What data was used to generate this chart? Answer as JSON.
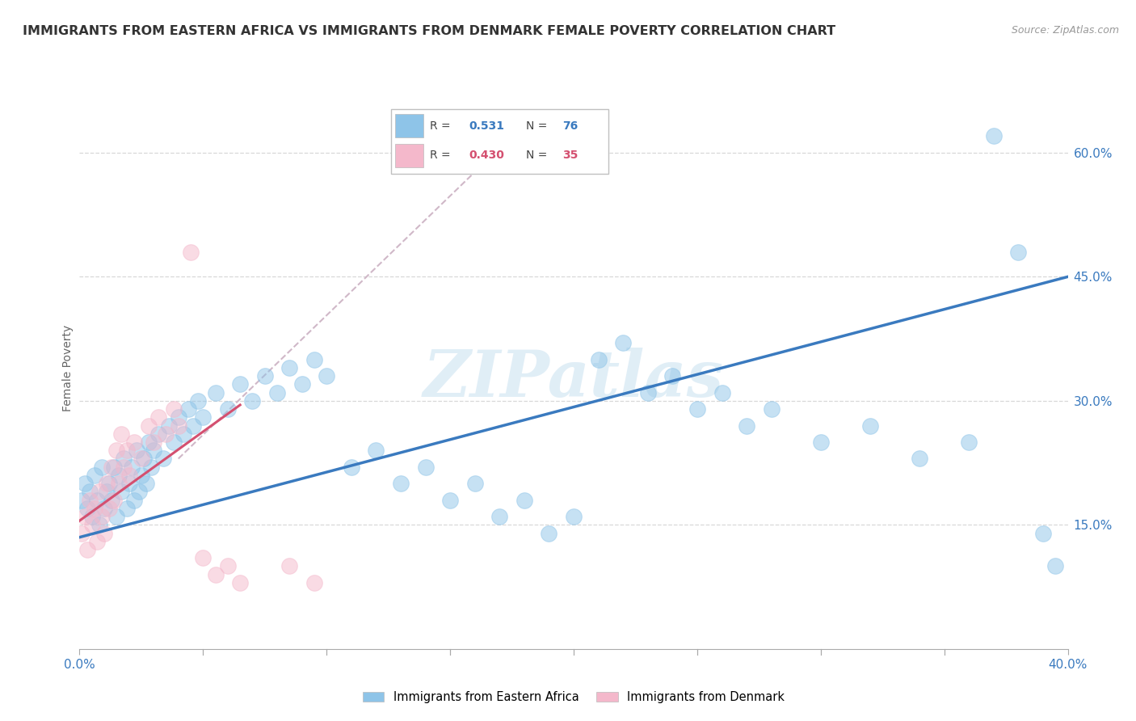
{
  "title": "IMMIGRANTS FROM EASTERN AFRICA VS IMMIGRANTS FROM DENMARK FEMALE POVERTY CORRELATION CHART",
  "source": "Source: ZipAtlas.com",
  "ylabel": "Female Poverty",
  "right_yticks": [
    "15.0%",
    "30.0%",
    "45.0%",
    "60.0%"
  ],
  "right_ytick_values": [
    0.15,
    0.3,
    0.45,
    0.6
  ],
  "xlim": [
    0.0,
    0.4
  ],
  "ylim": [
    0.0,
    0.68
  ],
  "bottom_legend1": "Immigrants from Eastern Africa",
  "bottom_legend2": "Immigrants from Denmark",
  "watermark": "ZIPatlas",
  "blue_color": "#8ec4e8",
  "pink_color": "#f4b8cb",
  "blue_line_color": "#3a7abf",
  "pink_line_color": "#d45070",
  "trend_color": "#d0b8c8",
  "grid_color": "#d8d8d8",
  "title_fontsize": 11.5,
  "source_fontsize": 9,
  "blue_scatter_x": [
    0.001,
    0.002,
    0.003,
    0.004,
    0.005,
    0.006,
    0.007,
    0.008,
    0.009,
    0.01,
    0.011,
    0.012,
    0.013,
    0.014,
    0.015,
    0.016,
    0.017,
    0.018,
    0.019,
    0.02,
    0.021,
    0.022,
    0.023,
    0.024,
    0.025,
    0.026,
    0.027,
    0.028,
    0.029,
    0.03,
    0.032,
    0.034,
    0.036,
    0.038,
    0.04,
    0.042,
    0.044,
    0.046,
    0.048,
    0.05,
    0.055,
    0.06,
    0.065,
    0.07,
    0.075,
    0.08,
    0.085,
    0.09,
    0.095,
    0.1,
    0.11,
    0.12,
    0.13,
    0.14,
    0.15,
    0.16,
    0.17,
    0.18,
    0.19,
    0.2,
    0.21,
    0.22,
    0.23,
    0.24,
    0.25,
    0.26,
    0.27,
    0.28,
    0.3,
    0.32,
    0.34,
    0.36,
    0.37,
    0.38,
    0.39,
    0.395
  ],
  "blue_scatter_y": [
    0.18,
    0.2,
    0.17,
    0.19,
    0.16,
    0.21,
    0.18,
    0.15,
    0.22,
    0.17,
    0.19,
    0.2,
    0.18,
    0.22,
    0.16,
    0.21,
    0.19,
    0.23,
    0.17,
    0.2,
    0.22,
    0.18,
    0.24,
    0.19,
    0.21,
    0.23,
    0.2,
    0.25,
    0.22,
    0.24,
    0.26,
    0.23,
    0.27,
    0.25,
    0.28,
    0.26,
    0.29,
    0.27,
    0.3,
    0.28,
    0.31,
    0.29,
    0.32,
    0.3,
    0.33,
    0.31,
    0.34,
    0.32,
    0.35,
    0.33,
    0.22,
    0.24,
    0.2,
    0.22,
    0.18,
    0.2,
    0.16,
    0.18,
    0.14,
    0.16,
    0.35,
    0.37,
    0.31,
    0.33,
    0.29,
    0.31,
    0.27,
    0.29,
    0.25,
    0.27,
    0.23,
    0.25,
    0.62,
    0.48,
    0.14,
    0.1
  ],
  "pink_scatter_x": [
    0.001,
    0.002,
    0.003,
    0.004,
    0.005,
    0.006,
    0.007,
    0.008,
    0.009,
    0.01,
    0.011,
    0.012,
    0.013,
    0.014,
    0.015,
    0.016,
    0.017,
    0.018,
    0.019,
    0.02,
    0.022,
    0.025,
    0.028,
    0.03,
    0.032,
    0.035,
    0.038,
    0.04,
    0.045,
    0.05,
    0.055,
    0.06,
    0.065,
    0.085,
    0.095
  ],
  "pink_scatter_y": [
    0.14,
    0.16,
    0.12,
    0.18,
    0.15,
    0.17,
    0.13,
    0.19,
    0.16,
    0.14,
    0.2,
    0.17,
    0.22,
    0.18,
    0.24,
    0.2,
    0.26,
    0.22,
    0.24,
    0.21,
    0.25,
    0.23,
    0.27,
    0.25,
    0.28,
    0.26,
    0.29,
    0.27,
    0.48,
    0.11,
    0.09,
    0.1,
    0.08,
    0.1,
    0.08
  ],
  "blue_line_x": [
    0.0,
    0.4
  ],
  "blue_line_y": [
    0.135,
    0.45
  ],
  "pink_line_x": [
    0.0,
    0.065
  ],
  "pink_line_y": [
    0.155,
    0.295
  ],
  "trend_line_x": [
    0.04,
    0.175
  ],
  "trend_line_y": [
    0.23,
    0.62
  ]
}
